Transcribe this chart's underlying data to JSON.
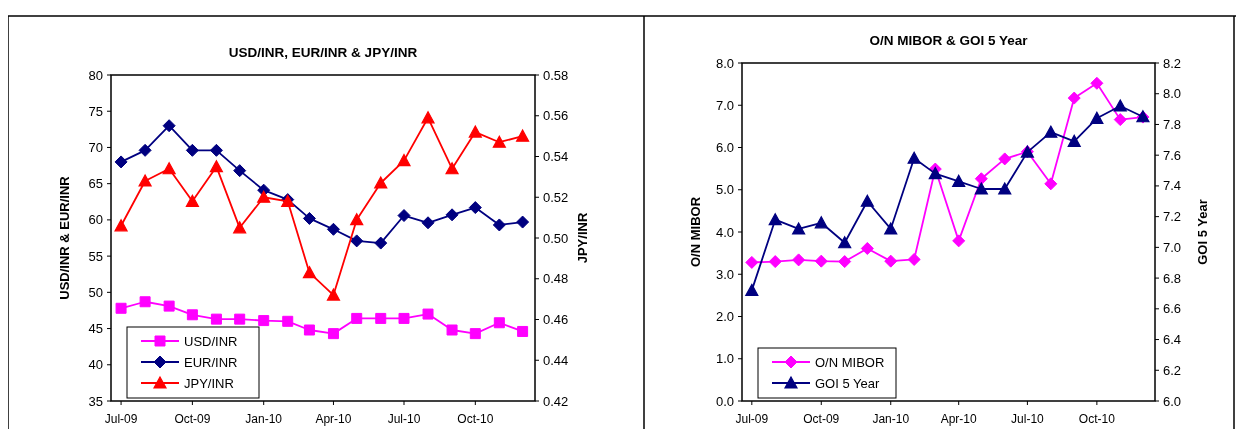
{
  "chart_data": [
    {
      "type": "line",
      "title": "USD/INR, EUR/INR & JPY/INR",
      "ylabel": "USD/INR & EUR/INR",
      "y2label": "JPY/INR",
      "x": [
        "2009-07",
        "2009-08",
        "2009-09",
        "2009-10",
        "2009-11",
        "2009-12",
        "2010-01",
        "2010-02",
        "2010-03",
        "2010-04",
        "2010-05",
        "2010-06",
        "2010-07",
        "2010-08",
        "2010-09",
        "2010-10",
        "2010-11",
        "2010-12"
      ],
      "xlim": [
        "2009-06-18",
        "2010-12-17"
      ],
      "xticks": [
        {
          "value": "2009-07-01",
          "label": "Jul-09"
        },
        {
          "value": "2009-10-01",
          "label": "Oct-09"
        },
        {
          "value": "2010-01-01",
          "label": "Jan-10"
        },
        {
          "value": "2010-04-01",
          "label": "Apr-10"
        },
        {
          "value": "2010-07-01",
          "label": "Jul-10"
        },
        {
          "value": "2010-10-01",
          "label": "Oct-10"
        }
      ],
      "ylim": [
        35,
        80
      ],
      "yticks": [
        35,
        40,
        45,
        50,
        55,
        60,
        65,
        70,
        75,
        80
      ],
      "y2lim": [
        0.42,
        0.58
      ],
      "y2ticks": [
        {
          "value": 0.42,
          "label": "0.42"
        },
        {
          "value": 0.44,
          "label": "0.44"
        },
        {
          "value": 0.46,
          "label": "0.46"
        },
        {
          "value": 0.48,
          "label": "0.48"
        },
        {
          "value": 0.5,
          "label": "0.50"
        },
        {
          "value": 0.52,
          "label": "0.52"
        },
        {
          "value": 0.54,
          "label": "0.54"
        },
        {
          "value": 0.56,
          "label": "0.56"
        },
        {
          "value": 0.58,
          "label": "0.58"
        }
      ],
      "legend": "bottom left",
      "grid": false,
      "series": [
        {
          "name": "USD/INR",
          "color": "#ff00ff",
          "marker": "square",
          "values": [
            47.8,
            48.7,
            48.1,
            46.9,
            46.3,
            46.3,
            46.1,
            46.0,
            44.8,
            44.3,
            46.4,
            46.4,
            46.4,
            47.0,
            44.8,
            44.3,
            45.8,
            44.6
          ]
        },
        {
          "name": "EUR/INR",
          "color": "#000080",
          "marker": "diamond",
          "values": [
            68.0,
            69.6,
            73.0,
            69.6,
            69.6,
            66.8,
            64.1,
            62.8,
            60.2,
            58.7,
            57.1,
            56.8,
            60.6,
            59.6,
            60.7,
            61.7,
            59.3,
            59.7
          ]
        },
        {
          "name": "JPY/INR",
          "color": "#ff0000",
          "marker": "triangle",
          "axis": "y2",
          "values": [
            0.506,
            0.528,
            0.534,
            0.518,
            0.535,
            0.505,
            0.52,
            0.518,
            0.483,
            0.472,
            0.509,
            0.527,
            0.538,
            0.559,
            0.534,
            0.552,
            0.547,
            0.55
          ]
        }
      ]
    },
    {
      "type": "line",
      "title": "O/N MIBOR & GOI 5 Year",
      "ylabel": "O/N MIBOR",
      "y2label": "GOI 5 Year",
      "x": [
        "2009-07",
        "2009-08",
        "2009-09",
        "2009-10",
        "2009-11",
        "2009-12",
        "2010-01",
        "2010-02",
        "2010-03",
        "2010-04",
        "2010-05",
        "2010-06",
        "2010-07",
        "2010-08",
        "2010-09",
        "2010-10",
        "2010-11",
        "2010-12"
      ],
      "xlim": [
        "2009-06-18",
        "2010-12-17"
      ],
      "xticks": [
        {
          "value": "2009-07-01",
          "label": "Jul-09"
        },
        {
          "value": "2009-10-01",
          "label": "Oct-09"
        },
        {
          "value": "2010-01-01",
          "label": "Jan-10"
        },
        {
          "value": "2010-04-01",
          "label": "Apr-10"
        },
        {
          "value": "2010-07-01",
          "label": "Jul-10"
        },
        {
          "value": "2010-10-01",
          "label": "Oct-10"
        }
      ],
      "ylim": [
        0,
        8
      ],
      "yticks": [
        {
          "value": 0,
          "label": "0.0"
        },
        {
          "value": 1,
          "label": "1.0"
        },
        {
          "value": 2,
          "label": "2.0"
        },
        {
          "value": 3,
          "label": "3.0"
        },
        {
          "value": 4,
          "label": "4.0"
        },
        {
          "value": 5,
          "label": "5.0"
        },
        {
          "value": 6,
          "label": "6.0"
        },
        {
          "value": 7,
          "label": "7.0"
        },
        {
          "value": 8,
          "label": "8.0"
        }
      ],
      "y2lim": [
        6.0,
        8.2
      ],
      "y2ticks": [
        {
          "value": 6,
          "label": "6.0"
        },
        {
          "value": 6.2,
          "label": "6.2"
        },
        {
          "value": 6.4,
          "label": "6.4"
        },
        {
          "value": 6.6,
          "label": "6.6"
        },
        {
          "value": 6.8,
          "label": "6.8"
        },
        {
          "value": 7,
          "label": "7.0"
        },
        {
          "value": 7.2,
          "label": "7.2"
        },
        {
          "value": 7.4,
          "label": "7.4"
        },
        {
          "value": 7.6,
          "label": "7.6"
        },
        {
          "value": 7.8,
          "label": "7.8"
        },
        {
          "value": 8,
          "label": "8.0"
        },
        {
          "value": 8.2,
          "label": "8.2"
        }
      ],
      "legend": "bottom left",
      "grid": false,
      "series": [
        {
          "name": "O/N MIBOR",
          "color": "#ff00ff",
          "marker": "diamond",
          "values": [
            3.28,
            3.3,
            3.34,
            3.31,
            3.3,
            3.61,
            3.31,
            3.35,
            5.49,
            3.79,
            5.26,
            5.73,
            5.9,
            5.14,
            7.17,
            7.52,
            6.66,
            6.72
          ]
        },
        {
          "name": "GOI 5 Year",
          "color": "#000080",
          "marker": "triangle",
          "axis": "y2",
          "values": [
            6.72,
            7.18,
            7.12,
            7.16,
            7.03,
            7.3,
            7.12,
            7.58,
            7.48,
            7.43,
            7.38,
            7.38,
            7.62,
            7.75,
            7.69,
            7.84,
            7.92,
            7.85
          ]
        }
      ]
    }
  ]
}
